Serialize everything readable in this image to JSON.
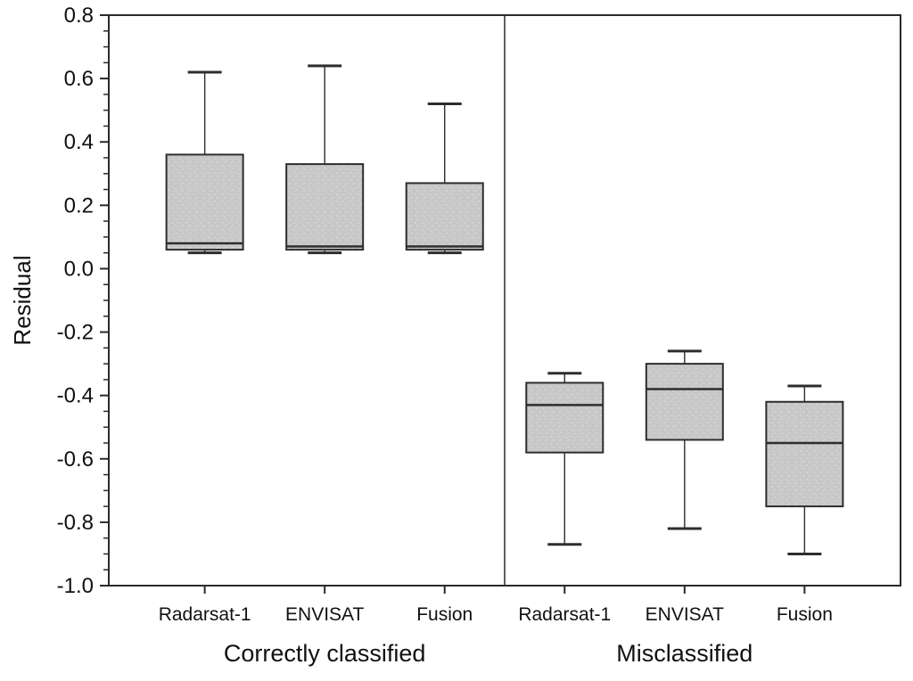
{
  "chart_data": {
    "type": "box",
    "title": "",
    "xlabel": "",
    "ylabel": "Residual",
    "ylim": [
      -1.0,
      0.8
    ],
    "yticks": [
      0.8,
      0.6,
      0.4,
      0.2,
      0.0,
      -0.2,
      -0.4,
      -0.6,
      -0.8,
      -1.0
    ],
    "ytick_minor_step": 0.05,
    "grid": false,
    "legend": "none",
    "panel_divider": true,
    "groups": [
      {
        "label": "Correctly classified",
        "boxes": [
          {
            "category": "Radarsat-1",
            "whisker_low": 0.05,
            "q1": 0.06,
            "median": 0.08,
            "q3": 0.36,
            "whisker_high": 0.62
          },
          {
            "category": "ENVISAT",
            "whisker_low": 0.05,
            "q1": 0.06,
            "median": 0.07,
            "q3": 0.33,
            "whisker_high": 0.64
          },
          {
            "category": "Fusion",
            "whisker_low": 0.05,
            "q1": 0.06,
            "median": 0.07,
            "q3": 0.27,
            "whisker_high": 0.52
          }
        ]
      },
      {
        "label": "Misclassified",
        "boxes": [
          {
            "category": "Radarsat-1",
            "whisker_low": -0.87,
            "q1": -0.58,
            "median": -0.43,
            "q3": -0.36,
            "whisker_high": -0.33
          },
          {
            "category": "ENVISAT",
            "whisker_low": -0.82,
            "q1": -0.54,
            "median": -0.38,
            "q3": -0.3,
            "whisker_high": -0.26
          },
          {
            "category": "Fusion",
            "whisker_low": -0.9,
            "q1": -0.75,
            "median": -0.55,
            "q3": -0.42,
            "whisker_high": -0.37
          }
        ]
      }
    ],
    "colors": {
      "background": "#ffffff",
      "axis": "#2a2a2a",
      "box_stroke": "#2d2d2d",
      "box_fill": "#c6c6c6",
      "stipple_dot": "#dedede",
      "text": "#111111"
    }
  }
}
